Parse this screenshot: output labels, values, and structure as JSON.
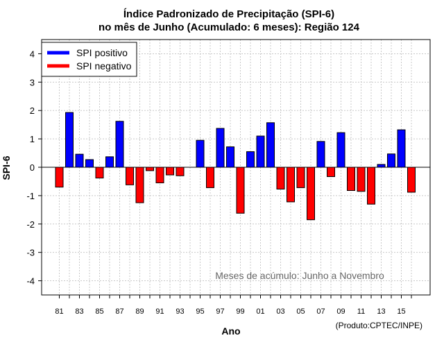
{
  "chart_data": {
    "type": "bar",
    "title_line1": "Índice Padronizado de Precipitação (SPI-6)",
    "title_line2": "no mês de Junho (Acumulado: 6 meses): Região 124",
    "xlabel": "Ano",
    "ylabel": "SPI-6",
    "ylim": [
      -4.5,
      4.5
    ],
    "yticks": [
      "-4",
      "-3",
      "-2",
      "-1",
      "0",
      "1",
      "2",
      "3",
      "4"
    ],
    "ytick_values": [
      -4,
      -3,
      -2,
      -1,
      0,
      1,
      2,
      3,
      4
    ],
    "xtick_labels": [
      "81",
      "83",
      "85",
      "87",
      "89",
      "91",
      "93",
      "95",
      "97",
      "99",
      "01",
      "03",
      "05",
      "07",
      "09",
      "11",
      "13",
      "15"
    ],
    "categories": [
      "81",
      "82",
      "83",
      "84",
      "85",
      "86",
      "87",
      "88",
      "89",
      "90",
      "91",
      "92",
      "93",
      "94",
      "95",
      "96",
      "97",
      "98",
      "99",
      "00",
      "01",
      "02",
      "03",
      "04",
      "05",
      "06",
      "07",
      "08",
      "09",
      "10",
      "11",
      "12",
      "13",
      "14",
      "15",
      "16"
    ],
    "values": [
      -0.7,
      1.93,
      0.46,
      0.27,
      -0.38,
      0.37,
      1.62,
      -0.62,
      -1.25,
      -0.12,
      -0.55,
      -0.27,
      -0.3,
      0.0,
      0.95,
      -0.72,
      1.37,
      0.72,
      -1.62,
      0.55,
      1.1,
      1.57,
      -0.77,
      -1.22,
      -0.72,
      -1.85,
      0.91,
      -0.33,
      1.22,
      -0.82,
      -0.85,
      -1.3,
      0.1,
      0.47,
      1.32,
      -0.88
    ],
    "legend": [
      {
        "label": "SPI positivo",
        "color": "#0000ff"
      },
      {
        "label": "SPI negativo",
        "color": "#ff0000"
      }
    ],
    "grid": true,
    "legend_position": "top-left",
    "note": "Meses de acúmulo: Junho a Novembro",
    "credit": "(Produto:CPTEC/INPE)"
  }
}
